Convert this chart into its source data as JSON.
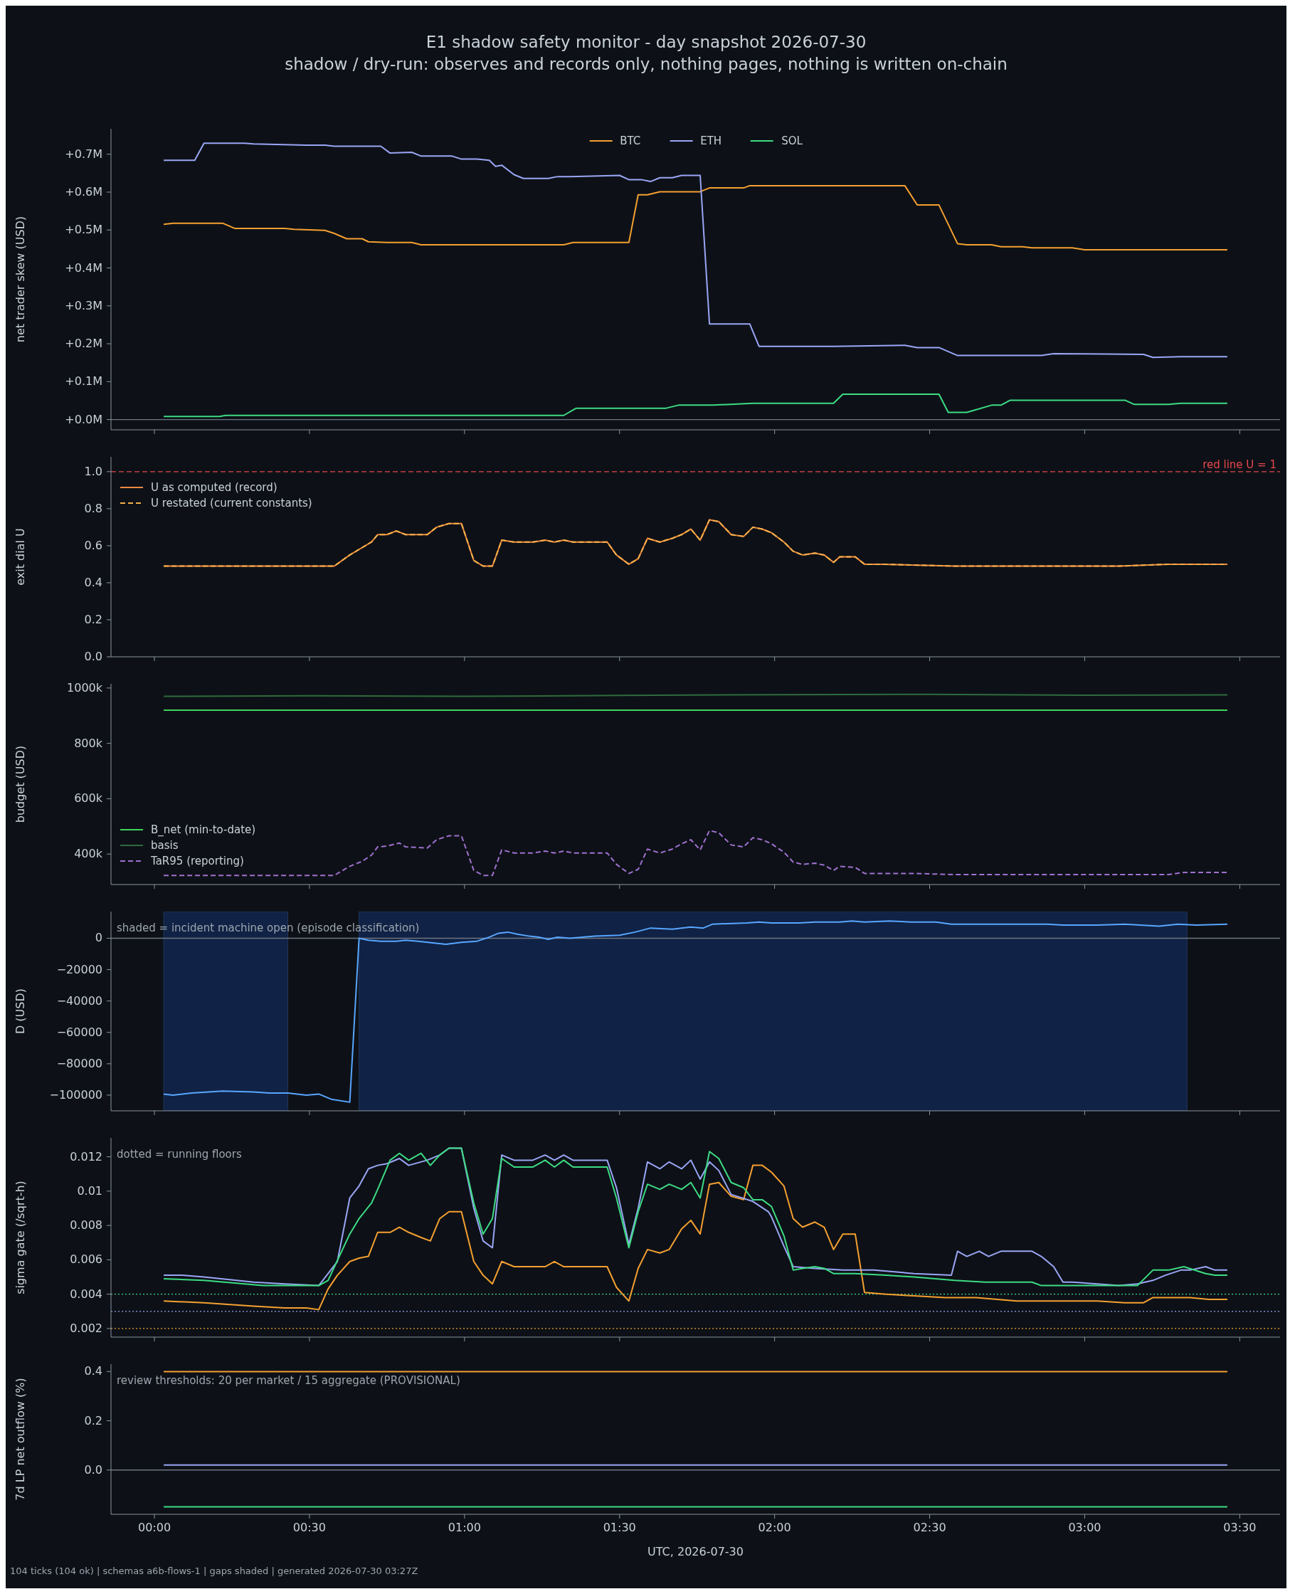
{
  "chart_data": [
    {
      "type": "line",
      "title": "E1 shadow safety monitor - day snapshot 2026-07-30",
      "subtitle": "shadow / dry-run: observes and records only, nothing pages, nothing is written on-chain",
      "ylabel": "net trader skew (USD)",
      "legend": "top",
      "tick_labels": "y",
      "xlim": [
        -0.14,
        3.63
      ],
      "xticks": [
        {
          "value": 0,
          "label": null
        },
        {
          "value": 0.5,
          "label": null
        },
        {
          "value": 1,
          "label": null
        },
        {
          "value": 1.5,
          "label": null
        },
        {
          "value": 2,
          "label": null
        },
        {
          "value": 2.5,
          "label": null
        },
        {
          "value": 3,
          "label": null
        },
        {
          "value": 3.5,
          "label": null
        }
      ],
      "ylim": [
        -27000,
        767000
      ],
      "yticks": [
        {
          "value": 0,
          "label": "+0.0M"
        },
        {
          "value": 100000,
          "label": "+0.1M"
        },
        {
          "value": 200000,
          "label": "+0.2M"
        },
        {
          "value": 300000,
          "label": "+0.3M"
        },
        {
          "value": 400000,
          "label": "+0.4M"
        },
        {
          "value": 500000,
          "label": "+0.5M"
        },
        {
          "value": 600000,
          "label": "+0.6M"
        },
        {
          "value": 700000,
          "label": "+0.7M"
        }
      ],
      "ref_lines": [
        {
          "axis": "y",
          "value": 0,
          "color": "#6e7681"
        }
      ],
      "series": [
        {
          "name": "BTC",
          "color": "#f5a030",
          "x": [
            0.03,
            0.06,
            0.22,
            0.26,
            0.42,
            0.45,
            0.55,
            0.58,
            0.62,
            0.67,
            0.69,
            0.75,
            0.83,
            0.86,
            0.94,
            1.14,
            1.32,
            1.35,
            1.53,
            1.56,
            1.59,
            1.63,
            1.76,
            1.79,
            1.9,
            1.92,
            2.13,
            2.42,
            2.46,
            2.53,
            2.59,
            2.62,
            2.7,
            2.73,
            2.8,
            2.83,
            2.96,
            3.0,
            3.11,
            3.31,
            3.46
          ],
          "values": [
            515000,
            518000,
            518000,
            504000,
            504000,
            502000,
            499000,
            491000,
            477000,
            477000,
            469000,
            467000,
            467000,
            461000,
            461000,
            461000,
            461000,
            467000,
            467000,
            593000,
            593000,
            601000,
            601000,
            611000,
            611000,
            617000,
            617000,
            617000,
            566000,
            566000,
            464000,
            461000,
            461000,
            456000,
            456000,
            453000,
            453000,
            448000,
            448000,
            448000,
            448000
          ]
        },
        {
          "name": "ETH",
          "color": "#9aa6f5",
          "x": [
            0.03,
            0.13,
            0.16,
            0.29,
            0.32,
            0.49,
            0.55,
            0.58,
            0.73,
            0.76,
            0.83,
            0.86,
            0.96,
            0.99,
            1.04,
            1.08,
            1.1,
            1.12,
            1.16,
            1.19,
            1.27,
            1.3,
            1.34,
            1.5,
            1.53,
            1.57,
            1.6,
            1.63,
            1.67,
            1.7,
            1.76,
            1.79,
            1.92,
            1.95,
            2.19,
            2.42,
            2.46,
            2.53,
            2.59,
            2.86,
            2.9,
            3.19,
            3.22,
            3.31,
            3.46
          ],
          "values": [
            684000,
            684000,
            729000,
            729000,
            727000,
            724000,
            724000,
            721000,
            721000,
            703000,
            705000,
            695000,
            695000,
            687000,
            687000,
            684000,
            668000,
            671000,
            646000,
            636000,
            636000,
            641000,
            641000,
            644000,
            633000,
            633000,
            628000,
            638000,
            638000,
            644000,
            644000,
            252000,
            252000,
            193000,
            193000,
            196000,
            190000,
            190000,
            169000,
            169000,
            174000,
            172000,
            164000,
            166000,
            166000
          ]
        },
        {
          "name": "SOL",
          "color": "#3ddc84",
          "x": [
            0.03,
            0.21,
            0.23,
            1.32,
            1.36,
            1.65,
            1.69,
            1.8,
            1.93,
            2.19,
            2.22,
            2.53,
            2.56,
            2.62,
            2.7,
            2.73,
            2.76,
            3.13,
            3.16,
            3.27,
            3.31,
            3.46
          ],
          "values": [
            8000,
            8000,
            11000,
            11000,
            30000,
            30000,
            38000,
            38000,
            43000,
            43000,
            67000,
            67000,
            19000,
            19000,
            38000,
            38000,
            51000,
            51000,
            40000,
            40000,
            43000,
            43000
          ]
        }
      ]
    },
    {
      "type": "line",
      "ylabel": "exit dial U",
      "legend": "top left",
      "tick_labels": "y",
      "xlim": [
        -0.14,
        3.63
      ],
      "xticks": [
        {
          "value": 0,
          "label": null
        },
        {
          "value": 0.5,
          "label": null
        },
        {
          "value": 1,
          "label": null
        },
        {
          "value": 1.5,
          "label": null
        },
        {
          "value": 2,
          "label": null
        },
        {
          "value": 2.5,
          "label": null
        },
        {
          "value": 3,
          "label": null
        },
        {
          "value": 3.5,
          "label": null
        }
      ],
      "ylim": [
        0,
        1.08
      ],
      "yticks": [
        {
          "value": 0,
          "label": "0.0"
        },
        {
          "value": 0.2,
          "label": "0.2"
        },
        {
          "value": 0.4,
          "label": "0.4"
        },
        {
          "value": 0.6,
          "label": "0.6"
        },
        {
          "value": 0.8,
          "label": "0.8"
        },
        {
          "value": 1,
          "label": "1.0"
        }
      ],
      "ref_lines": [
        {
          "axis": "y",
          "value": 1,
          "label": "red line U = 1",
          "color": "#e5484d",
          "line_style": "dashed"
        }
      ],
      "series": [
        {
          "name": "U as computed (record)",
          "color": "#f0883e",
          "x": [
            0.03,
            0.58,
            0.63,
            0.67,
            0.7,
            0.72,
            0.75,
            0.78,
            0.81,
            0.88,
            0.91,
            0.95,
            0.99,
            1.03,
            1.06,
            1.09,
            1.12,
            1.16,
            1.22,
            1.26,
            1.29,
            1.32,
            1.35,
            1.46,
            1.49,
            1.53,
            1.56,
            1.59,
            1.63,
            1.67,
            1.7,
            1.73,
            1.76,
            1.79,
            1.82,
            1.86,
            1.9,
            1.93,
            1.96,
            1.99,
            2.03,
            2.06,
            2.09,
            2.13,
            2.16,
            2.19,
            2.21,
            2.26,
            2.29,
            2.35,
            2.58,
            2.78,
            3.11,
            3.27,
            3.32,
            3.46
          ],
          "values": [
            0.49,
            0.49,
            0.55,
            0.59,
            0.62,
            0.66,
            0.66,
            0.68,
            0.66,
            0.66,
            0.7,
            0.72,
            0.72,
            0.52,
            0.49,
            0.49,
            0.63,
            0.62,
            0.62,
            0.63,
            0.62,
            0.63,
            0.62,
            0.62,
            0.55,
            0.5,
            0.53,
            0.64,
            0.62,
            0.64,
            0.66,
            0.69,
            0.63,
            0.74,
            0.73,
            0.66,
            0.65,
            0.7,
            0.69,
            0.67,
            0.62,
            0.57,
            0.55,
            0.56,
            0.55,
            0.51,
            0.54,
            0.54,
            0.5,
            0.5,
            0.49,
            0.49,
            0.49,
            0.5,
            0.5,
            0.5
          ]
        },
        {
          "name": "U restated (current constants)",
          "color": "#f5b04a",
          "line_style": "dashed",
          "x": [
            0.03,
            0.58,
            0.63,
            0.67,
            0.7,
            0.72,
            0.75,
            0.78,
            0.81,
            0.88,
            0.91,
            0.95,
            0.99,
            1.03,
            1.06,
            1.09,
            1.12,
            1.16,
            1.22,
            1.26,
            1.29,
            1.32,
            1.35,
            1.46,
            1.49,
            1.53,
            1.56,
            1.59,
            1.63,
            1.67,
            1.7,
            1.73,
            1.76,
            1.79,
            1.82,
            1.86,
            1.9,
            1.93,
            1.96,
            1.99,
            2.03,
            2.06,
            2.09,
            2.13,
            2.16,
            2.19,
            2.21,
            2.26,
            2.29,
            2.35,
            2.58,
            2.78,
            3.11,
            3.27,
            3.32,
            3.46
          ],
          "values": [
            0.49,
            0.49,
            0.55,
            0.59,
            0.62,
            0.66,
            0.66,
            0.68,
            0.66,
            0.66,
            0.7,
            0.72,
            0.72,
            0.52,
            0.49,
            0.49,
            0.63,
            0.62,
            0.62,
            0.63,
            0.62,
            0.63,
            0.62,
            0.62,
            0.55,
            0.5,
            0.53,
            0.64,
            0.62,
            0.64,
            0.66,
            0.69,
            0.63,
            0.74,
            0.73,
            0.66,
            0.65,
            0.7,
            0.69,
            0.67,
            0.62,
            0.57,
            0.55,
            0.56,
            0.55,
            0.51,
            0.54,
            0.54,
            0.5,
            0.5,
            0.49,
            0.49,
            0.49,
            0.5,
            0.5,
            0.5
          ]
        }
      ]
    },
    {
      "type": "line",
      "ylabel": "budget (USD)",
      "legend": "bottom left",
      "tick_labels": "y",
      "xlim": [
        -0.14,
        3.63
      ],
      "xticks": [
        {
          "value": 0,
          "label": null
        },
        {
          "value": 0.5,
          "label": null
        },
        {
          "value": 1,
          "label": null
        },
        {
          "value": 1.5,
          "label": null
        },
        {
          "value": 2,
          "label": null
        },
        {
          "value": 2.5,
          "label": null
        },
        {
          "value": 3,
          "label": null
        },
        {
          "value": 3.5,
          "label": null
        }
      ],
      "ylim": [
        290000,
        1015000
      ],
      "yticks": [
        {
          "value": 400000,
          "label": "400k"
        },
        {
          "value": 600000,
          "label": "600k"
        },
        {
          "value": 800000,
          "label": "800k"
        },
        {
          "value": 1000000,
          "label": "1000k"
        }
      ],
      "series": [
        {
          "name": "B_net (min-to-date)",
          "color": "#3fd45a",
          "x": [
            0.03,
            3.46
          ],
          "values": [
            920000,
            920000
          ]
        },
        {
          "name": "basis",
          "color": "#2f6b3c",
          "x": [
            0.03,
            0.5,
            1.0,
            1.5,
            2.0,
            2.5,
            3.0,
            3.46
          ],
          "values": [
            970000,
            972000,
            970000,
            973000,
            976000,
            977000,
            974000,
            975000
          ]
        },
        {
          "name": "TaR95 (reporting)",
          "color": "#a070d0",
          "line_style": "dashed",
          "x": [
            0.03,
            0.58,
            0.63,
            0.67,
            0.7,
            0.72,
            0.75,
            0.79,
            0.81,
            0.88,
            0.91,
            0.95,
            0.99,
            1.03,
            1.06,
            1.09,
            1.12,
            1.16,
            1.22,
            1.26,
            1.29,
            1.32,
            1.35,
            1.46,
            1.49,
            1.53,
            1.56,
            1.59,
            1.63,
            1.67,
            1.7,
            1.73,
            1.76,
            1.79,
            1.82,
            1.86,
            1.9,
            1.93,
            1.96,
            1.99,
            2.03,
            2.06,
            2.09,
            2.13,
            2.16,
            2.19,
            2.21,
            2.26,
            2.29,
            2.45,
            2.58,
            3.11,
            3.27,
            3.32,
            3.46
          ],
          "values": [
            323000,
            323000,
            356000,
            374000,
            396000,
            426000,
            429000,
            440000,
            426000,
            422000,
            452000,
            466000,
            466000,
            341000,
            323000,
            323000,
            415000,
            404000,
            404000,
            411000,
            404000,
            411000,
            404000,
            404000,
            363000,
            330000,
            345000,
            418000,
            404000,
            418000,
            437000,
            452000,
            415000,
            485000,
            477000,
            433000,
            426000,
            459000,
            452000,
            437000,
            407000,
            371000,
            363000,
            367000,
            360000,
            341000,
            356000,
            352000,
            330000,
            330000,
            326000,
            326000,
            326000,
            334000,
            334000
          ]
        }
      ]
    },
    {
      "type": "line",
      "ylabel": "D (USD)",
      "tick_labels": "y",
      "annotations": [
        "shaded = incident machine open (episode classification)"
      ],
      "xlim": [
        -0.14,
        3.63
      ],
      "xticks": [
        {
          "value": 0,
          "label": null
        },
        {
          "value": 0.5,
          "label": null
        },
        {
          "value": 1,
          "label": null
        },
        {
          "value": 1.5,
          "label": null
        },
        {
          "value": 2,
          "label": null
        },
        {
          "value": 2.5,
          "label": null
        },
        {
          "value": 3,
          "label": null
        },
        {
          "value": 3.5,
          "label": null
        }
      ],
      "ylim": [
        -110000,
        17000
      ],
      "yticks": [
        {
          "value": -100000,
          "label": "−100000"
        },
        {
          "value": -80000,
          "label": "−80000"
        },
        {
          "value": -60000,
          "label": "−60000"
        },
        {
          "value": -40000,
          "label": "−40000"
        },
        {
          "value": -20000,
          "label": "−20000"
        },
        {
          "value": 0,
          "label": "0"
        }
      ],
      "ref_lines": [
        {
          "axis": "y",
          "value": 0,
          "color": "#6e7681"
        }
      ],
      "bands": [
        {
          "axis": "x",
          "from": 0.03,
          "to": 0.43,
          "color": "#11254a"
        },
        {
          "axis": "x",
          "from": 0.66,
          "to": 3.33,
          "color": "#11254a"
        }
      ],
      "series": [
        {
          "color": "#58a6ff",
          "x": [
            0.03,
            0.06,
            0.12,
            0.22,
            0.32,
            0.37,
            0.43,
            0.49,
            0.53,
            0.57,
            0.63,
            0.66,
            0.69,
            0.73,
            0.78,
            0.81,
            0.85,
            0.94,
            0.99,
            1.04,
            1.08,
            1.11,
            1.14,
            1.17,
            1.21,
            1.24,
            1.27,
            1.3,
            1.34,
            1.42,
            1.5,
            1.55,
            1.6,
            1.67,
            1.73,
            1.77,
            1.8,
            1.91,
            1.95,
            1.99,
            2.08,
            2.13,
            2.21,
            2.25,
            2.29,
            2.37,
            2.44,
            2.52,
            2.57,
            2.65,
            2.73,
            2.81,
            2.88,
            2.93,
            2.98,
            3.04,
            3.13,
            3.18,
            3.24,
            3.3,
            3.36,
            3.46
          ],
          "values": [
            -99300,
            -100000,
            -98700,
            -97400,
            -98000,
            -98700,
            -98700,
            -100000,
            -99300,
            -102600,
            -104500,
            0,
            -1300,
            -1900,
            -1900,
            -1300,
            -1900,
            -3900,
            -2600,
            -1900,
            700,
            3200,
            3900,
            2600,
            1300,
            700,
            -700,
            700,
            0,
            1300,
            1900,
            3900,
            6500,
            5800,
            7100,
            6500,
            9000,
            9700,
            10300,
            9700,
            9700,
            10300,
            10300,
            11000,
            10300,
            11000,
            10300,
            10300,
            9000,
            9000,
            9000,
            9000,
            9000,
            8400,
            8400,
            8400,
            9000,
            8400,
            7700,
            9000,
            8400,
            9000
          ]
        }
      ]
    },
    {
      "type": "line",
      "ylabel": "sigma gate (/sqrt-h)",
      "tick_labels": "y",
      "annotations": [
        "dotted = running floors"
      ],
      "xlim": [
        -0.14,
        3.63
      ],
      "xticks": [
        {
          "value": 0,
          "label": null
        },
        {
          "value": 0.5,
          "label": null
        },
        {
          "value": 1,
          "label": null
        },
        {
          "value": 1.5,
          "label": null
        },
        {
          "value": 2,
          "label": null
        },
        {
          "value": 2.5,
          "label": null
        },
        {
          "value": 3,
          "label": null
        },
        {
          "value": 3.5,
          "label": null
        }
      ],
      "ylim": [
        0.0015,
        0.0131
      ],
      "yticks": [
        0.002,
        0.004,
        0.006,
        0.008,
        0.01,
        0.012
      ],
      "ref_lines": [
        {
          "axis": "y",
          "value": 0.004,
          "color": "#3ddc84",
          "line_style": "dotted"
        },
        {
          "axis": "y",
          "value": 0.003,
          "color": "#9aa6f5",
          "line_style": "dotted"
        },
        {
          "axis": "y",
          "value": 0.002,
          "color": "#f5a030",
          "line_style": "dotted"
        }
      ],
      "series": [
        {
          "color": "#f5a030",
          "x": [
            0.03,
            0.16,
            0.32,
            0.42,
            0.49,
            0.53,
            0.56,
            0.59,
            0.63,
            0.66,
            0.69,
            0.72,
            0.76,
            0.79,
            0.82,
            0.86,
            0.89,
            0.92,
            0.95,
            0.99,
            1.03,
            1.06,
            1.09,
            1.12,
            1.16,
            1.26,
            1.29,
            1.32,
            1.46,
            1.49,
            1.53,
            1.56,
            1.59,
            1.63,
            1.66,
            1.7,
            1.73,
            1.76,
            1.79,
            1.82,
            1.86,
            1.9,
            1.93,
            1.96,
            1.99,
            2.03,
            2.06,
            2.09,
            2.13,
            2.16,
            2.19,
            2.22,
            2.26,
            2.29,
            2.36,
            2.45,
            2.55,
            2.65,
            2.78,
            2.91,
            2.96,
            3.04,
            3.13,
            3.19,
            3.22,
            3.31,
            3.34,
            3.4,
            3.46
          ],
          "values": [
            0.0036,
            0.0035,
            0.0033,
            0.0032,
            0.0032,
            0.0031,
            0.0043,
            0.0051,
            0.0059,
            0.0061,
            0.0062,
            0.0076,
            0.0076,
            0.0079,
            0.0076,
            0.0073,
            0.0071,
            0.0084,
            0.0088,
            0.0088,
            0.0059,
            0.0051,
            0.0046,
            0.0059,
            0.0056,
            0.0056,
            0.0059,
            0.0056,
            0.0056,
            0.0044,
            0.0036,
            0.0055,
            0.0066,
            0.0064,
            0.0066,
            0.0078,
            0.0083,
            0.0075,
            0.0104,
            0.0105,
            0.0097,
            0.0095,
            0.0115,
            0.0115,
            0.0111,
            0.0103,
            0.0084,
            0.0079,
            0.0082,
            0.0079,
            0.0066,
            0.0075,
            0.0075,
            0.0041,
            0.004,
            0.0039,
            0.0038,
            0.0038,
            0.0036,
            0.0036,
            0.0036,
            0.0036,
            0.0035,
            0.0035,
            0.0038,
            0.0038,
            0.0038,
            0.0037,
            0.0037
          ]
        },
        {
          "color": "#9aa6f5",
          "x": [
            0.03,
            0.09,
            0.16,
            0.32,
            0.42,
            0.53,
            0.59,
            0.63,
            0.66,
            0.69,
            0.72,
            0.75,
            0.79,
            0.82,
            0.88,
            0.92,
            0.95,
            0.99,
            1.03,
            1.06,
            1.09,
            1.12,
            1.16,
            1.22,
            1.26,
            1.29,
            1.32,
            1.35,
            1.46,
            1.49,
            1.53,
            1.56,
            1.59,
            1.63,
            1.66,
            1.7,
            1.73,
            1.76,
            1.79,
            1.82,
            1.86,
            1.93,
            1.98,
            1.99,
            2.03,
            2.06,
            2.13,
            2.22,
            2.32,
            2.45,
            2.57,
            2.59,
            2.62,
            2.66,
            2.69,
            2.73,
            2.83,
            2.86,
            2.9,
            2.93,
            2.96,
            3.04,
            3.11,
            3.17,
            3.22,
            3.26,
            3.31,
            3.34,
            3.39,
            3.42,
            3.46
          ],
          "values": [
            0.0051,
            0.0051,
            0.005,
            0.0047,
            0.0046,
            0.0045,
            0.0059,
            0.0096,
            0.0103,
            0.0113,
            0.0115,
            0.0116,
            0.0119,
            0.0115,
            0.0118,
            0.0121,
            0.0125,
            0.0125,
            0.009,
            0.0071,
            0.0067,
            0.0121,
            0.0118,
            0.0118,
            0.0121,
            0.0118,
            0.0121,
            0.0118,
            0.0118,
            0.0102,
            0.0069,
            0.009,
            0.0117,
            0.0113,
            0.0117,
            0.0113,
            0.0118,
            0.0107,
            0.0117,
            0.0112,
            0.0098,
            0.0094,
            0.0088,
            0.0085,
            0.0068,
            0.0056,
            0.0055,
            0.0054,
            0.0054,
            0.0052,
            0.0051,
            0.0065,
            0.0062,
            0.0065,
            0.0062,
            0.0065,
            0.0065,
            0.0062,
            0.0056,
            0.0047,
            0.0047,
            0.0046,
            0.0045,
            0.0046,
            0.0048,
            0.0051,
            0.0054,
            0.0054,
            0.0056,
            0.0054,
            0.0054
          ]
        },
        {
          "color": "#3ddc84",
          "x": [
            0.03,
            0.16,
            0.35,
            0.49,
            0.53,
            0.56,
            0.63,
            0.66,
            0.7,
            0.72,
            0.76,
            0.79,
            0.82,
            0.86,
            0.89,
            0.92,
            0.95,
            0.99,
            1.03,
            1.06,
            1.09,
            1.12,
            1.16,
            1.22,
            1.26,
            1.29,
            1.32,
            1.35,
            1.46,
            1.49,
            1.53,
            1.56,
            1.59,
            1.63,
            1.66,
            1.7,
            1.73,
            1.76,
            1.79,
            1.82,
            1.86,
            1.9,
            1.93,
            1.96,
            1.99,
            2.03,
            2.06,
            2.09,
            2.13,
            2.16,
            2.19,
            2.26,
            2.36,
            2.45,
            2.58,
            2.68,
            2.83,
            2.86,
            2.93,
            2.98,
            3.04,
            3.11,
            3.17,
            3.22,
            3.27,
            3.32,
            3.39,
            3.42,
            3.46
          ],
          "values": [
            0.0049,
            0.0048,
            0.0045,
            0.0045,
            0.0045,
            0.0048,
            0.0075,
            0.0084,
            0.0093,
            0.0101,
            0.0118,
            0.0122,
            0.0118,
            0.0122,
            0.0115,
            0.0121,
            0.0125,
            0.0125,
            0.0093,
            0.0075,
            0.0084,
            0.0119,
            0.0114,
            0.0114,
            0.0118,
            0.0114,
            0.0118,
            0.0114,
            0.0114,
            0.0096,
            0.0067,
            0.0088,
            0.0104,
            0.0101,
            0.0104,
            0.0101,
            0.0105,
            0.0096,
            0.0123,
            0.0119,
            0.0105,
            0.0102,
            0.0095,
            0.0095,
            0.0091,
            0.0074,
            0.0054,
            0.0055,
            0.0056,
            0.0055,
            0.0052,
            0.0052,
            0.0051,
            0.005,
            0.0048,
            0.0047,
            0.0047,
            0.0045,
            0.0045,
            0.0045,
            0.0045,
            0.0045,
            0.0045,
            0.0054,
            0.0054,
            0.0056,
            0.0052,
            0.0051,
            0.0051
          ]
        }
      ]
    },
    {
      "type": "line",
      "xlabel": "UTC, 2026-07-30",
      "ylabel": "7d LP net outflow (%)",
      "annotations": [
        "review thresholds: 20 per market / 15 aggregate (PROVISIONAL)",
        "104 ticks (104 ok) | schemas a6b-flows-1 | gaps shaded | generated 2026-07-30 03:27Z"
      ],
      "xlim": [
        -0.14,
        3.63
      ],
      "xticks": [
        {
          "value": 0,
          "label": "00:00"
        },
        {
          "value": 0.5,
          "label": "00:30"
        },
        {
          "value": 1,
          "label": "01:00"
        },
        {
          "value": 1.5,
          "label": "01:30"
        },
        {
          "value": 2,
          "label": "02:00"
        },
        {
          "value": 2.5,
          "label": "02:30"
        },
        {
          "value": 3,
          "label": "03:00"
        },
        {
          "value": 3.5,
          "label": "03:30"
        }
      ],
      "ylim": [
        -0.18,
        0.43
      ],
      "yticks": [
        {
          "value": 0,
          "label": "0.0"
        },
        {
          "value": 0.2,
          "label": "0.2"
        },
        {
          "value": 0.4,
          "label": "0.4"
        }
      ],
      "ref_lines": [
        {
          "axis": "y",
          "value": 0,
          "color": "#6e7681"
        }
      ],
      "series": [
        {
          "color": "#f5a030",
          "x": [
            0.03,
            3.46
          ],
          "values": [
            0.4,
            0.4
          ]
        },
        {
          "color": "#9aa6f5",
          "x": [
            0.03,
            3.46
          ],
          "values": [
            0.02,
            0.02
          ]
        },
        {
          "color": "#3ddc84",
          "x": [
            0.03,
            3.46
          ],
          "values": [
            -0.15,
            -0.15
          ]
        }
      ]
    }
  ]
}
